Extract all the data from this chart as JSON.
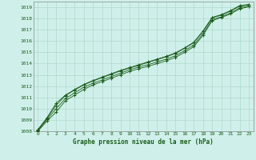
{
  "title": "Graphe pression niveau de la mer (hPa)",
  "bg_color": "#cff0ea",
  "grid_color": "#b0d8cc",
  "line_color": "#1a5c1a",
  "xlim": [
    -0.5,
    23.5
  ],
  "ylim": [
    1008,
    1019.5
  ],
  "xticks": [
    0,
    1,
    2,
    3,
    4,
    5,
    6,
    7,
    8,
    9,
    10,
    11,
    12,
    13,
    14,
    15,
    16,
    17,
    18,
    19,
    20,
    21,
    22,
    23
  ],
  "yticks": [
    1008,
    1009,
    1010,
    1011,
    1012,
    1013,
    1014,
    1015,
    1016,
    1017,
    1018,
    1019
  ],
  "series": [
    [
      1008.0,
      1008.9,
      1009.7,
      1010.7,
      1011.2,
      1011.7,
      1012.1,
      1012.4,
      1012.7,
      1013.0,
      1013.3,
      1013.55,
      1013.75,
      1014.0,
      1014.25,
      1014.55,
      1015.0,
      1015.5,
      1016.5,
      1017.8,
      1018.1,
      1018.4,
      1018.85,
      1019.05
    ],
    [
      1008.05,
      1009.05,
      1010.0,
      1010.9,
      1011.4,
      1011.9,
      1012.25,
      1012.55,
      1012.85,
      1013.15,
      1013.45,
      1013.7,
      1013.9,
      1014.15,
      1014.4,
      1014.7,
      1015.15,
      1015.65,
      1016.65,
      1017.9,
      1018.15,
      1018.5,
      1018.95,
      1019.1
    ],
    [
      1008.1,
      1009.15,
      1010.3,
      1011.15,
      1011.65,
      1012.1,
      1012.45,
      1012.75,
      1013.05,
      1013.35,
      1013.6,
      1013.85,
      1014.1,
      1014.35,
      1014.6,
      1014.9,
      1015.35,
      1015.85,
      1016.85,
      1018.05,
      1018.3,
      1018.65,
      1019.1,
      1019.2
    ],
    [
      1008.15,
      1009.2,
      1010.5,
      1011.2,
      1011.7,
      1012.15,
      1012.5,
      1012.8,
      1013.1,
      1013.4,
      1013.65,
      1013.9,
      1014.15,
      1014.4,
      1014.65,
      1014.95,
      1015.4,
      1015.9,
      1016.9,
      1018.1,
      1018.35,
      1018.7,
      1019.15,
      1019.25
    ]
  ]
}
